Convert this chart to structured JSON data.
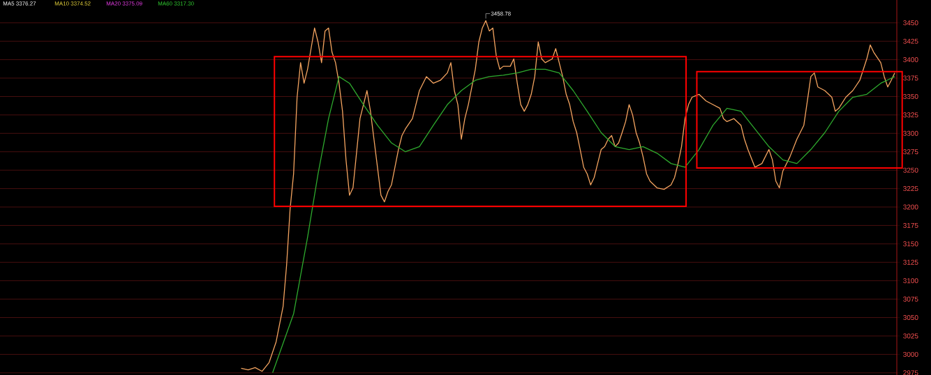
{
  "chart_data": {
    "type": "line",
    "annotations": [
      "MA5 3376.27",
      "MA10 3374.52",
      "MA20 3375.09",
      "MA60 3317.30",
      "3458.78"
    ],
    "categories": [
      null,
      null,
      null,
      null,
      null,
      null,
      null,
      null,
      null,
      null,
      null,
      null,
      null,
      null,
      null,
      null,
      null,
      null,
      null,
      null,
      null,
      null,
      null,
      null,
      null,
      null,
      null,
      null,
      null,
      null,
      null,
      null,
      null,
      null,
      null,
      null,
      null,
      null,
      null,
      null,
      null,
      null,
      null,
      null,
      null,
      null,
      null,
      null,
      null,
      null,
      null,
      null,
      null,
      null,
      null,
      null,
      null,
      null,
      null,
      null,
      null,
      null,
      null,
      null,
      null,
      null,
      null,
      null,
      null,
      null,
      null,
      null,
      null,
      null,
      null,
      null,
      null,
      null,
      null,
      null,
      null,
      null,
      null,
      null,
      null,
      null,
      null,
      null,
      null,
      null,
      null,
      null,
      null,
      null,
      null,
      null,
      null,
      null,
      null,
      null,
      null,
      null,
      null,
      null,
      null,
      null,
      null,
      null,
      null,
      null,
      null,
      null,
      null,
      null,
      null,
      null,
      null,
      null,
      null,
      null,
      null,
      null,
      null,
      null,
      null,
      null,
      null,
      null,
      null,
      null,
      null,
      null,
      null,
      null,
      null,
      null,
      null,
      null,
      null,
      null,
      null,
      null,
      null,
      null,
      null,
      null,
      null,
      null,
      null,
      null,
      null,
      null,
      null,
      null,
      null,
      null,
      null,
      null,
      null,
      null,
      null,
      null,
      null,
      null,
      null,
      null,
      null,
      null,
      null,
      null,
      null,
      null,
      null,
      null,
      null,
      null,
      null,
      null,
      null,
      null,
      null,
      null,
      null,
      null,
      null,
      null,
      null,
      null
    ],
    "ylim": [
      2972,
      3481
    ],
    "yticks": [
      3450,
      3425,
      3400,
      3375,
      3350,
      3325,
      3300,
      3275,
      3250,
      3225,
      3200,
      3175,
      3150,
      3125,
      3100,
      3075,
      3050,
      3025,
      3000,
      2975
    ],
    "tick_labels": "y",
    "grid": "y",
    "series": [
      {
        "color": "#f4a460",
        "values": [
          2981,
          null,
          2979,
          null,
          2982,
          null,
          2977,
          null,
          2989,
          null,
          3017,
          null,
          3065,
          3121,
          3197,
          3245,
          3349,
          3396,
          3368,
          3387,
          3415,
          3443,
          3424,
          3396,
          3439,
          3443,
          3410,
          3396,
          3368,
          3330,
          3264,
          3216,
          3226,
          3273,
          3320,
          3339,
          3358,
          3330,
          3292,
          3254,
          3216,
          3207,
          3221,
          3230,
          3254,
          3278,
          3297,
          3306,
          null,
          3320,
          null,
          3358,
          null,
          3377,
          null,
          3368,
          null,
          3372,
          null,
          3382,
          3396,
          3358,
          3339,
          3292,
          3320,
          3339,
          null,
          3387,
          3424,
          3443,
          3453,
          3439,
          3443,
          3405,
          3387,
          3391,
          null,
          3391,
          3401,
          3368,
          3339,
          3330,
          3339,
          3353,
          3377,
          3424,
          3401,
          3396,
          null,
          3401,
          3415,
          3396,
          3377,
          3353,
          3339,
          3316,
          3301,
          3278,
          3254,
          3245,
          3230,
          3240,
          3259,
          3278,
          3282,
          3292,
          3297,
          3282,
          3287,
          3301,
          3316,
          3339,
          3325,
          3301,
          3287,
          3268,
          3245,
          3235,
          null,
          3226,
          null,
          3224,
          null,
          3230,
          3240,
          3259,
          3282,
          3320,
          3339,
          3349,
          null,
          3353,
          null,
          3344,
          null,
          3339,
          null,
          3334,
          3320,
          3316,
          null,
          3320,
          null,
          3311,
          3292,
          3278,
          null,
          3254,
          null,
          3259,
          null,
          3278,
          3264,
          3235,
          3226,
          3249,
          null,
          3268,
          null,
          3292,
          null,
          3311,
          3344,
          3377,
          3382,
          3363,
          null,
          3358,
          null,
          3349,
          3330,
          3334,
          null,
          3349,
          null,
          3358,
          null,
          3372,
          null,
          3401,
          3420,
          3410,
          null,
          3396,
          3377,
          3363,
          3372,
          3382
        ]
      },
      {
        "color": "#2eaa2e",
        "values": [
          null,
          null,
          null,
          null,
          null,
          null,
          null,
          null,
          null,
          2975,
          null,
          null,
          null,
          null,
          null,
          3055,
          null,
          null,
          null,
          3159,
          null,
          null,
          3245,
          null,
          null,
          3320,
          null,
          null,
          3377,
          null,
          null,
          3368,
          null,
          null,
          null,
          3339,
          null,
          null,
          null,
          3311,
          null,
          null,
          null,
          3287,
          null,
          null,
          null,
          3275,
          null,
          null,
          null,
          3282,
          null,
          null,
          null,
          3311,
          null,
          null,
          null,
          3339,
          null,
          null,
          null,
          3358,
          null,
          null,
          null,
          3372,
          null,
          null,
          null,
          3377,
          null,
          null,
          null,
          3379,
          null,
          null,
          null,
          3382,
          null,
          null,
          null,
          3387,
          null,
          null,
          null,
          3387,
          null,
          null,
          null,
          3382,
          null,
          null,
          null,
          3358,
          null,
          null,
          null,
          3330,
          null,
          null,
          null,
          3301,
          null,
          null,
          null,
          3282,
          null,
          null,
          null,
          3278,
          null,
          null,
          null,
          3282,
          null,
          null,
          null,
          3273,
          null,
          null,
          null,
          3259,
          null,
          null,
          null,
          3254,
          null,
          null,
          null,
          3278,
          null,
          null,
          null,
          3311,
          null,
          null,
          null,
          3334,
          null,
          null,
          null,
          3330,
          null,
          null,
          null,
          3306,
          null,
          null,
          null,
          3282,
          null,
          null,
          null,
          3264,
          null,
          null,
          null,
          3259,
          null,
          null,
          null,
          3278,
          null,
          null,
          null,
          3301,
          null,
          null,
          null,
          3330,
          null,
          null,
          null,
          3349,
          null,
          null,
          null,
          3353,
          null,
          null,
          null,
          3368,
          null,
          null,
          null,
          3377
        ]
      }
    ]
  }
}
